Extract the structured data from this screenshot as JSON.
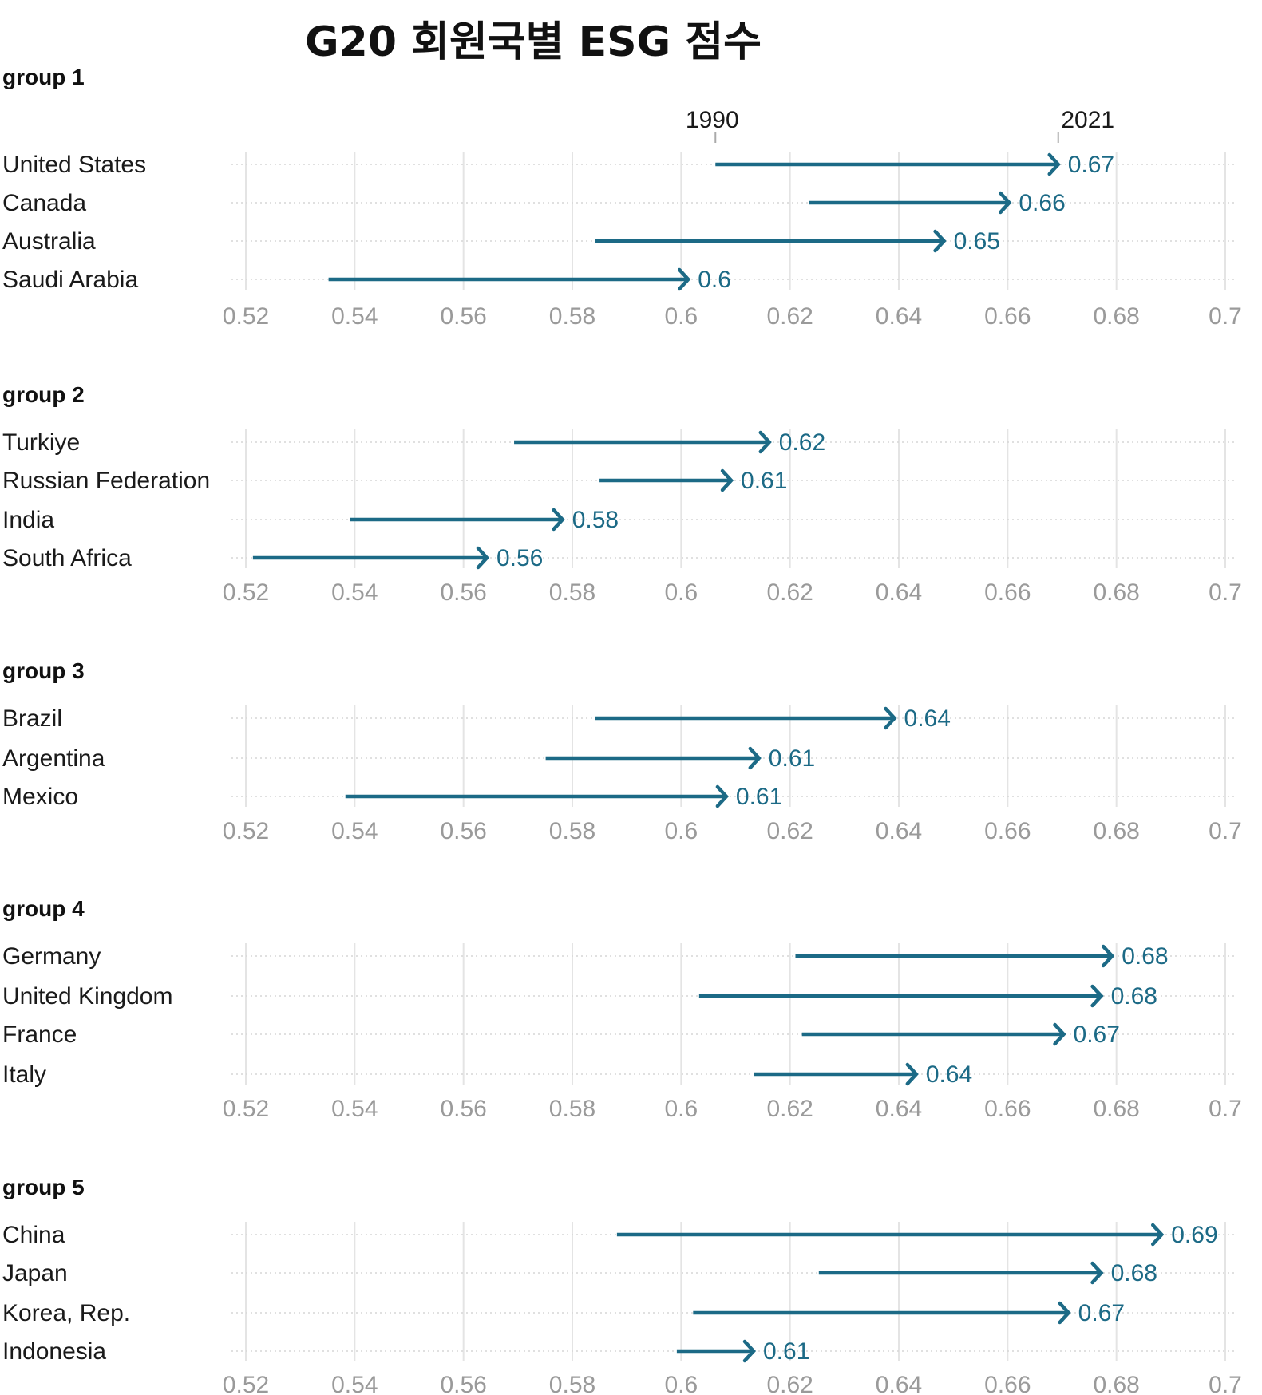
{
  "chart_data": {
    "type": "arrow",
    "title": "G20 회원국별  ESG 점수",
    "start_label": "1990",
    "end_label": "2021",
    "xlim": [
      0.52,
      0.7
    ],
    "x_ticks": [
      "0.52",
      "0.54",
      "0.56",
      "0.58",
      "0.6",
      "0.62",
      "0.64",
      "0.66",
      "0.68",
      "0.7"
    ],
    "grid": true,
    "colors": {
      "arrow": "#1c6a86",
      "grid": "#e4e4e4",
      "tick_text": "#9a9a9a"
    },
    "groups": [
      {
        "name": "group 1",
        "rows": [
          {
            "country": "United States",
            "start": 0.6063,
            "end": 0.6693,
            "label": "0.67"
          },
          {
            "country": "Canada",
            "start": 0.6235,
            "end": 0.6603,
            "label": "0.66"
          },
          {
            "country": "Australia",
            "start": 0.5842,
            "end": 0.6483,
            "label": "0.65"
          },
          {
            "country": "Saudi Arabia",
            "start": 0.5352,
            "end": 0.6013,
            "label": "0.6"
          }
        ]
      },
      {
        "name": "group 2",
        "rows": [
          {
            "country": "Turkiye",
            "start": 0.5693,
            "end": 0.6162,
            "label": "0.62"
          },
          {
            "country": "Russian Federation",
            "start": 0.585,
            "end": 0.6092,
            "label": "0.61"
          },
          {
            "country": "India",
            "start": 0.5392,
            "end": 0.5782,
            "label": "0.58"
          },
          {
            "country": "South Africa",
            "start": 0.5213,
            "end": 0.5643,
            "label": "0.56"
          }
        ]
      },
      {
        "name": "group 3",
        "rows": [
          {
            "country": "Brazil",
            "start": 0.5842,
            "end": 0.6392,
            "label": "0.64"
          },
          {
            "country": "Argentina",
            "start": 0.5751,
            "end": 0.6143,
            "label": "0.61"
          },
          {
            "country": "Mexico",
            "start": 0.5383,
            "end": 0.6083,
            "label": "0.61"
          }
        ]
      },
      {
        "name": "group 4",
        "rows": [
          {
            "country": "Germany",
            "start": 0.621,
            "end": 0.6792,
            "label": "0.68"
          },
          {
            "country": "United Kingdom",
            "start": 0.6033,
            "end": 0.6772,
            "label": "0.68"
          },
          {
            "country": "France",
            "start": 0.6222,
            "end": 0.6703,
            "label": "0.67"
          },
          {
            "country": "Italy",
            "start": 0.6133,
            "end": 0.6432,
            "label": "0.64"
          }
        ]
      },
      {
        "name": "group 5",
        "rows": [
          {
            "country": "China",
            "start": 0.5882,
            "end": 0.6883,
            "label": "0.69"
          },
          {
            "country": "Japan",
            "start": 0.6253,
            "end": 0.6772,
            "label": "0.68"
          },
          {
            "country": "Korea, Rep.",
            "start": 0.6022,
            "end": 0.6712,
            "label": "0.67"
          },
          {
            "country": "Indonesia",
            "start": 0.5992,
            "end": 0.6133,
            "label": "0.61"
          }
        ]
      }
    ]
  }
}
